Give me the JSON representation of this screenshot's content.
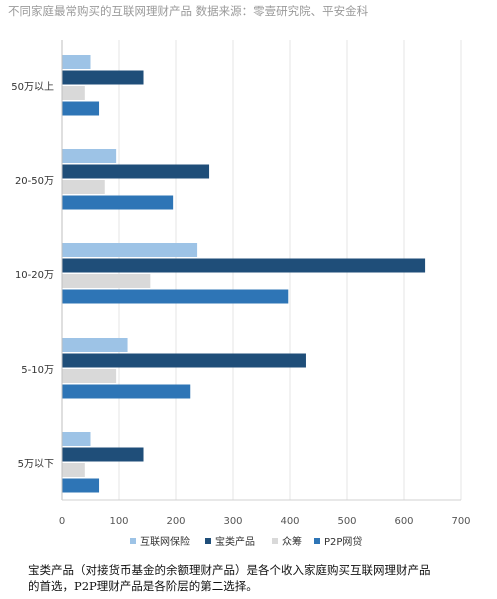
{
  "title": "不同家庭最常购买的互联网理财产品 数据来源：零壹研究院、平安金科",
  "caption_line1": "宝类产品（对接货币基金的余额理财产品）是各个收入家庭购买互联网理财产品",
  "caption_line2": "的首选，P2P理财产品是各阶层的第二选择。",
  "colors": {
    "互联网保险": "#9dc3e6",
    "宝类产品": "#1f4e79",
    "众筹": "#d9d9d9",
    "P2P网贷": "#2e75b6"
  },
  "chart_data": {
    "type": "bar",
    "orientation": "horizontal",
    "categories": [
      "50万以上",
      "20-50万",
      "10-20万",
      "5-10万",
      "5万以下"
    ],
    "series": [
      {
        "name": "互联网保险",
        "values": [
          50,
          95,
          237,
          115,
          50
        ]
      },
      {
        "name": "宝类产品",
        "values": [
          143,
          258,
          637,
          428,
          143
        ]
      },
      {
        "name": "众筹",
        "values": [
          40,
          75,
          155,
          95,
          40
        ]
      },
      {
        "name": "P2P网贷",
        "values": [
          65,
          195,
          397,
          225,
          65
        ]
      }
    ],
    "xlim": [
      0,
      700
    ],
    "xticks": [
      "0",
      "100",
      "200",
      "300",
      "400",
      "500",
      "600",
      "700"
    ],
    "grid": true,
    "legend_position": "bottom"
  }
}
